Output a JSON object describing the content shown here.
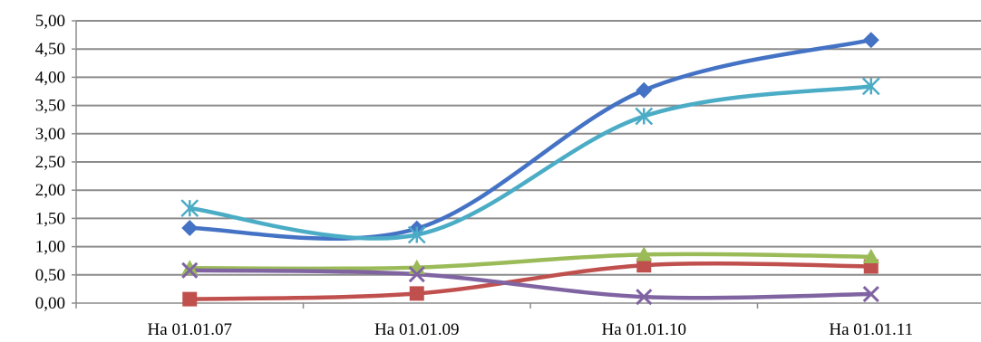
{
  "chart_data": {
    "type": "line",
    "title": "",
    "xlabel": "",
    "ylabel": "",
    "categories": [
      "На 01.01.07",
      "На 01.01.09",
      "На 01.01.10",
      "На 01.01.11"
    ],
    "ylim": [
      0,
      5
    ],
    "y_ticks": [
      "0,00",
      "0,50",
      "1,00",
      "1,50",
      "2,00",
      "2,50",
      "3,00",
      "3,50",
      "4,00",
      "4,50",
      "5,00"
    ],
    "grid": true,
    "legend": "none",
    "series": [
      {
        "values": [
          1.33,
          1.32,
          3.77,
          4.66
        ],
        "color": "#4472C4",
        "marker": "diamond"
      },
      {
        "values": [
          0.07,
          0.17,
          0.67,
          0.65
        ],
        "color": "#C0504D",
        "marker": "square"
      },
      {
        "values": [
          0.62,
          0.63,
          0.86,
          0.82
        ],
        "color": "#9BBB59",
        "marker": "triangle"
      },
      {
        "values": [
          0.58,
          0.51,
          0.11,
          0.16
        ],
        "color": "#8064A2",
        "marker": "x"
      },
      {
        "values": [
          1.68,
          1.21,
          3.31,
          3.84
        ],
        "color": "#4BACC6",
        "marker": "star"
      }
    ]
  }
}
